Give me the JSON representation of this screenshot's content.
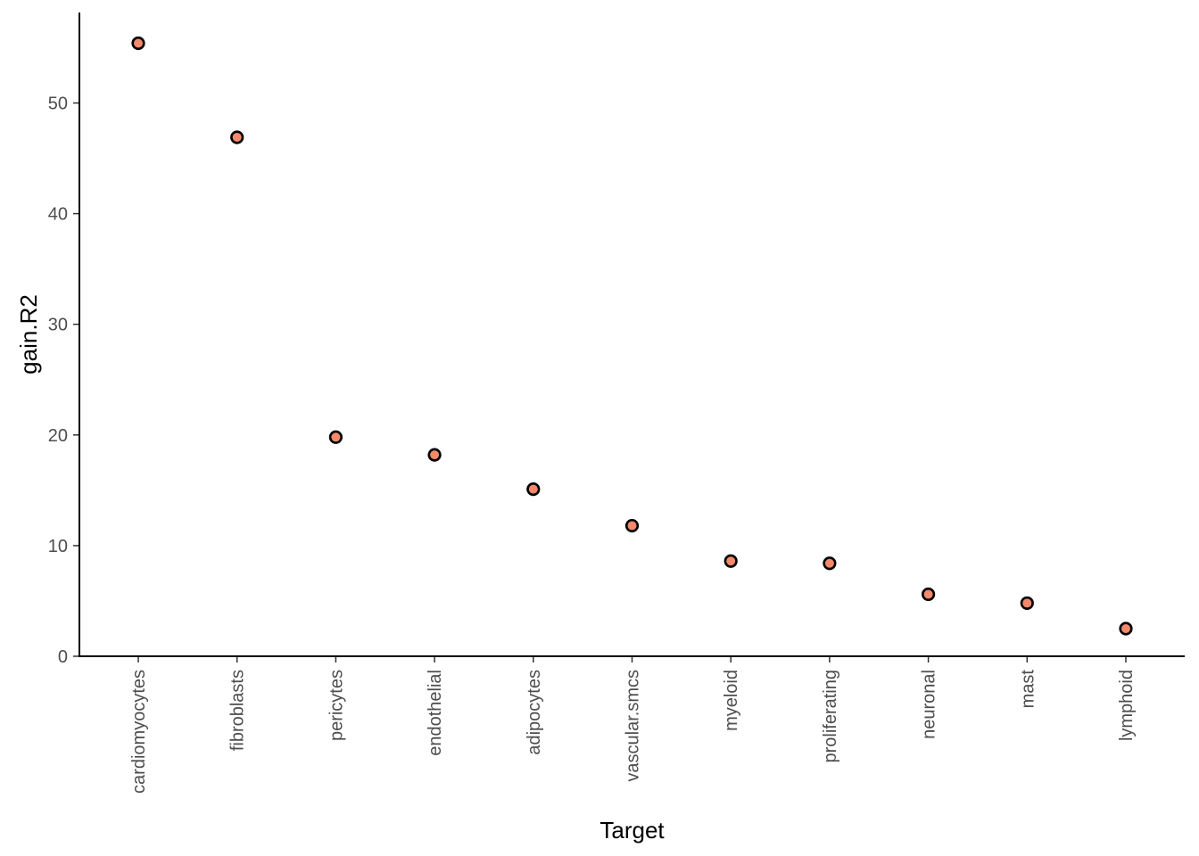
{
  "chart_data": {
    "type": "scatter",
    "title": "",
    "xlabel": "Target",
    "ylabel": "gain.R2",
    "categories": [
      "cardiomyocytes",
      "fibroblasts",
      "pericytes",
      "endothelial",
      "adipocytes",
      "vascular.smcs",
      "myeloid",
      "proliferating",
      "neuronal",
      "mast",
      "lymphoid"
    ],
    "values": [
      55.4,
      46.9,
      19.8,
      18.2,
      15.1,
      11.8,
      8.6,
      8.4,
      5.6,
      4.8,
      2.5
    ],
    "y_ticks": [
      0,
      10,
      20,
      30,
      40,
      50
    ],
    "ylim": [
      0,
      58
    ],
    "grid": false,
    "legend": "none",
    "colors": {
      "point_fill": "#F4896B",
      "point_stroke": "#000000",
      "axis": "#000000",
      "tick_label": "#4D4D4D"
    }
  }
}
